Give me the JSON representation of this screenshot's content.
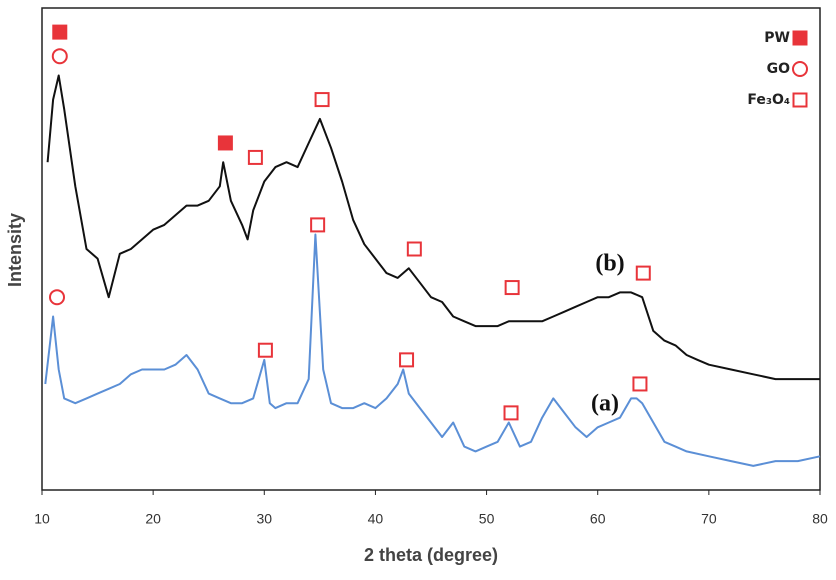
{
  "chart_data": {
    "type": "line",
    "x_label": "2 theta (degree)",
    "y_label": "Intensity",
    "xlim": [
      10,
      80
    ],
    "xticks": [
      10,
      20,
      30,
      40,
      50,
      60,
      70,
      80
    ],
    "ylim": [
      0,
      100
    ],
    "series": [
      {
        "name": "(b)",
        "color": "#111111",
        "x": [
          10.5,
          11,
          11.5,
          12,
          13,
          14,
          15,
          16,
          17,
          18,
          19,
          20,
          21,
          22,
          23,
          24,
          25,
          26,
          26.3,
          27,
          28,
          28.5,
          29,
          30,
          31,
          32,
          33,
          34,
          35,
          36,
          37,
          38,
          39,
          40,
          41,
          42,
          43,
          44,
          45,
          46,
          47,
          48,
          49,
          50,
          51,
          52,
          53,
          54,
          55,
          56,
          57,
          58,
          59,
          60,
          61,
          62,
          63,
          64,
          65,
          66,
          67,
          68,
          69,
          70,
          72,
          74,
          76,
          78,
          80
        ],
        "values": [
          68,
          81,
          86,
          79,
          63,
          50,
          48,
          40,
          49,
          50,
          52,
          54,
          55,
          57,
          59,
          59,
          60,
          63,
          68,
          60,
          55,
          52,
          58,
          64,
          67,
          68,
          67,
          72,
          77,
          71,
          64,
          56,
          51,
          48,
          45,
          44,
          46,
          43,
          40,
          39,
          36,
          35,
          34,
          34,
          34,
          35,
          35,
          35,
          35,
          36,
          37,
          38,
          39,
          40,
          40,
          41,
          41,
          40,
          33,
          31,
          30,
          28,
          27,
          26,
          25,
          24,
          23,
          23,
          23
        ]
      },
      {
        "name": "(a)",
        "color": "#5b8fd6",
        "x": [
          10.3,
          11,
          11.5,
          12,
          13,
          14,
          15,
          16,
          17,
          18,
          19,
          20,
          21,
          22,
          23,
          24,
          25,
          26,
          27,
          28,
          29,
          30,
          30.5,
          31,
          32,
          33,
          34,
          34.6,
          35.3,
          36,
          37,
          38,
          39,
          40,
          41,
          42,
          42.5,
          43,
          44,
          45,
          46,
          47,
          48,
          49,
          50,
          51,
          52,
          53,
          54,
          55,
          56,
          57,
          58,
          59,
          60,
          61,
          62,
          63,
          63.5,
          64,
          65,
          66,
          67,
          68,
          70,
          72,
          74,
          76,
          78,
          80
        ],
        "values": [
          22,
          36,
          25,
          19,
          18,
          19,
          20,
          21,
          22,
          24,
          25,
          25,
          25,
          26,
          28,
          25,
          20,
          19,
          18,
          18,
          19,
          27,
          18,
          17,
          18,
          18,
          23,
          53,
          25,
          18,
          17,
          17,
          18,
          17,
          19,
          22,
          25,
          20,
          17,
          14,
          11,
          14,
          9,
          8,
          9,
          10,
          14,
          9,
          10,
          15,
          19,
          16,
          13,
          11,
          13,
          14,
          15,
          19,
          19,
          18,
          14,
          10,
          9,
          8,
          7,
          6,
          5,
          6,
          6,
          7
        ]
      }
    ],
    "legend": [
      {
        "label": "PW",
        "marker": "filled-square",
        "color": "#e8343a",
        "positions": [
          [
            11.6,
            95
          ],
          [
            26.5,
            72
          ]
        ]
      },
      {
        "label": "GO",
        "marker": "circle",
        "color": "#e8343a",
        "positions": [
          [
            11.6,
            90
          ],
          [
            11.35,
            40
          ]
        ]
      },
      {
        "label": "Fe₃O₄",
        "marker": "open-square",
        "color": "#e8343a",
        "positions": [
          [
            29.2,
            69
          ],
          [
            35.2,
            81
          ],
          [
            43.5,
            50
          ],
          [
            52.3,
            42
          ],
          [
            64.1,
            45
          ],
          [
            34.8,
            55
          ],
          [
            30.1,
            29
          ],
          [
            42.8,
            27
          ],
          [
            52.2,
            16
          ],
          [
            63.8,
            22
          ]
        ]
      }
    ]
  }
}
